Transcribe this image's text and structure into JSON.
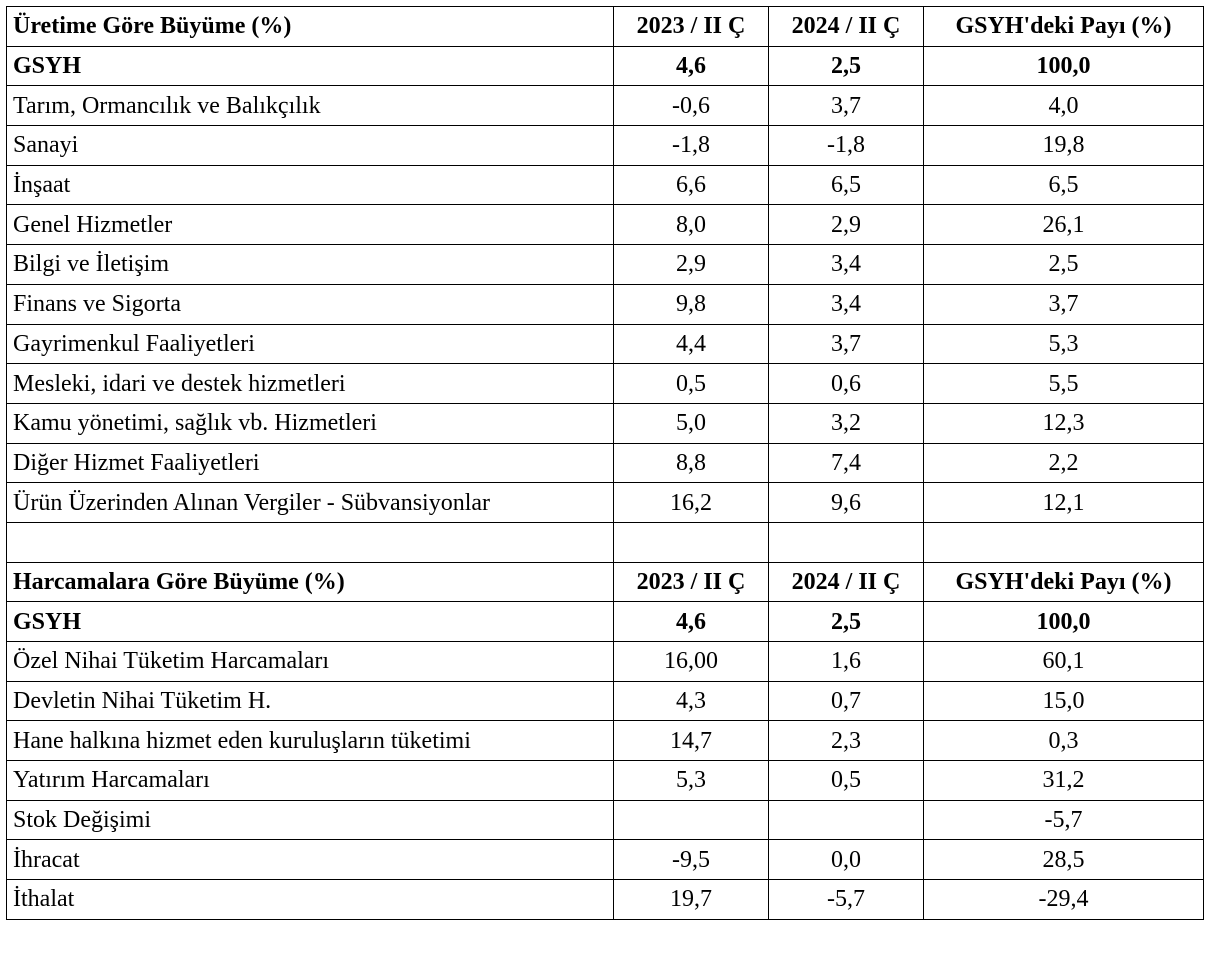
{
  "sections": [
    {
      "header": {
        "label": "Üretime Göre Büyüme (%)",
        "col_a": "2023 / II Ç",
        "col_b": "2024 / II Ç",
        "col_c": "GSYH'deki Payı (%)"
      },
      "total": {
        "label": "GSYH",
        "a": "4,6",
        "b": "2,5",
        "c": "100,0"
      },
      "rows": [
        {
          "label": "Tarım, Ormancılık ve Balıkçılık",
          "a": "-0,6",
          "b": "3,7",
          "c": "4,0"
        },
        {
          "label": "Sanayi",
          "a": "-1,8",
          "b": "-1,8",
          "c": "19,8"
        },
        {
          "label": "İnşaat",
          "a": "6,6",
          "b": "6,5",
          "c": "6,5"
        },
        {
          "label": "Genel Hizmetler",
          "a": "8,0",
          "b": "2,9",
          "c": "26,1"
        },
        {
          "label": "Bilgi ve İletişim",
          "a": "2,9",
          "b": "3,4",
          "c": "2,5"
        },
        {
          "label": "Finans ve Sigorta",
          "a": "9,8",
          "b": "3,4",
          "c": "3,7"
        },
        {
          "label": "Gayrimenkul Faaliyetleri",
          "a": "4,4",
          "b": "3,7",
          "c": "5,3"
        },
        {
          "label": "Mesleki, idari ve destek hizmetleri",
          "a": "0,5",
          "b": "0,6",
          "c": "5,5"
        },
        {
          "label": "Kamu yönetimi, sağlık vb. Hizmetleri",
          "a": "5,0",
          "b": "3,2",
          "c": "12,3"
        },
        {
          "label": "Diğer Hizmet Faaliyetleri",
          "a": "8,8",
          "b": "7,4",
          "c": "2,2"
        },
        {
          "label": "Ürün Üzerinden Alınan Vergiler - Sübvansiyonlar",
          "a": "16,2",
          "b": "9,6",
          "c": "12,1"
        }
      ]
    },
    {
      "header": {
        "label": "Harcamalara Göre Büyüme (%)",
        "col_a": "2023 / II Ç",
        "col_b": "2024 / II Ç",
        "col_c": "GSYH'deki Payı (%)"
      },
      "total": {
        "label": "GSYH",
        "a": "4,6",
        "b": "2,5",
        "c": "100,0"
      },
      "rows": [
        {
          "label": "Özel Nihai Tüketim Harcamaları",
          "a": "16,00",
          "b": "1,6",
          "c": "60,1"
        },
        {
          "label": "Devletin Nihai Tüketim H.",
          "a": "4,3",
          "b": "0,7",
          "c": "15,0"
        },
        {
          "label": "Hane halkına hizmet eden kuruluşların tüketimi",
          "a": "14,7",
          "b": "2,3",
          "c": "0,3"
        },
        {
          "label": "Yatırım Harcamaları",
          "a": "5,3",
          "b": "0,5",
          "c": "31,2"
        },
        {
          "label": "Stok Değişimi",
          "a": "",
          "b": "",
          "c": "-5,7"
        },
        {
          "label": "İhracat",
          "a": "-9,5",
          "b": "0,0",
          "c": "28,5"
        },
        {
          "label": "İthalat",
          "a": "19,7",
          "b": "-5,7",
          "c": "-29,4"
        }
      ]
    }
  ]
}
